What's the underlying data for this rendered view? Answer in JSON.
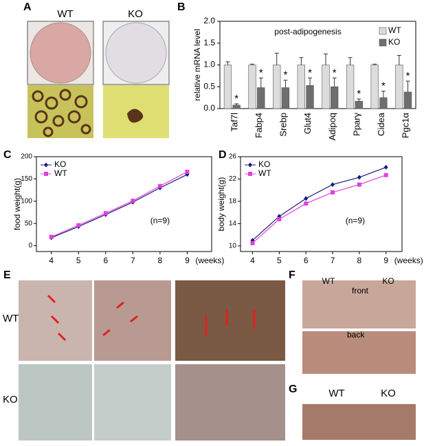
{
  "panels": {
    "A": {
      "label": "A",
      "wt": "WT",
      "ko": "KO"
    },
    "B": {
      "label": "B"
    },
    "C": {
      "label": "C"
    },
    "D": {
      "label": "D"
    },
    "E": {
      "label": "E",
      "wt": "WT",
      "ko": "KO"
    },
    "F": {
      "label": "F",
      "wt": "WT",
      "ko": "KO",
      "front": "front",
      "back": "back"
    },
    "G": {
      "label": "G",
      "wt": "WT",
      "ko": "KO"
    }
  },
  "chart_data": [
    {
      "type": "bar",
      "ylabel": "relative mRNA level",
      "annotation": "post-adipogenesis",
      "categories": [
        "Taf7l",
        "Fabp4",
        "Srebp",
        "Glut4",
        "Adipoq",
        "Pparγ",
        "Cidea",
        "Pgc1α"
      ],
      "series": [
        {
          "name": "WT",
          "color": "#dcdcdc",
          "values": [
            1.0,
            1.0,
            1.0,
            1.0,
            1.0,
            1.0,
            1.0,
            1.0
          ],
          "errors": [
            0.07,
            0.02,
            0.27,
            0.17,
            0.25,
            0.17,
            0.02,
            0.22
          ]
        },
        {
          "name": "KO",
          "color": "#6e6e6e",
          "values": [
            0.08,
            0.48,
            0.48,
            0.53,
            0.5,
            0.17,
            0.25,
            0.38
          ],
          "errors": [
            0.03,
            0.22,
            0.17,
            0.17,
            0.2,
            0.05,
            0.15,
            0.25
          ]
        }
      ],
      "significance": [
        "*",
        "*",
        "*",
        "*",
        "*",
        "*",
        "*",
        "*"
      ],
      "ylim": [
        0,
        2
      ],
      "yticks": [
        {
          "value": 0,
          "label": "0.0"
        },
        0.5,
        {
          "value": 1,
          "label": "1.0"
        },
        1.5,
        {
          "value": 2,
          "label": "2.0"
        }
      ],
      "legend": "top-right"
    },
    {
      "type": "line",
      "ylabel": "food weight(g)",
      "xlabel": "(weeks)",
      "annotation": "(n=9)",
      "x": [
        4,
        5,
        6,
        7,
        8,
        9
      ],
      "series": [
        {
          "name": "KO",
          "color": "#1a1a7a",
          "marker": "diamond",
          "values": [
            18,
            43,
            70,
            98,
            130,
            160
          ]
        },
        {
          "name": "WT",
          "color": "#e040e0",
          "marker": "square",
          "values": [
            20,
            46,
            73,
            101,
            134,
            166
          ]
        }
      ],
      "xlim": [
        3.45,
        9.9
      ],
      "ylim": [
        -13,
        200
      ],
      "xticks": [
        4,
        5,
        6,
        7,
        8,
        9
      ],
      "yticks": [
        0,
        50,
        100,
        150,
        200
      ],
      "legend": "top-left"
    },
    {
      "type": "line",
      "ylabel": "body weight(g)",
      "xlabel": "(weeks)",
      "annotation": "(n=9)",
      "x": [
        4,
        5,
        6,
        7,
        8,
        9
      ],
      "series": [
        {
          "name": "KO",
          "color": "#1a1a7a",
          "marker": "diamond",
          "values": [
            11,
            15.3,
            18.5,
            21,
            22.3,
            24.1
          ]
        },
        {
          "name": "WT",
          "color": "#e040e0",
          "marker": "square",
          "values": [
            10.5,
            14.8,
            17.6,
            19.6,
            21,
            22.7
          ]
        }
      ],
      "xlim": [
        3.55,
        9.6
      ],
      "ylim": [
        9,
        26
      ],
      "xticks": [
        4,
        5,
        6,
        7,
        8,
        9
      ],
      "yticks": [
        10,
        14,
        18,
        22,
        26
      ],
      "legend": "top-left"
    }
  ]
}
